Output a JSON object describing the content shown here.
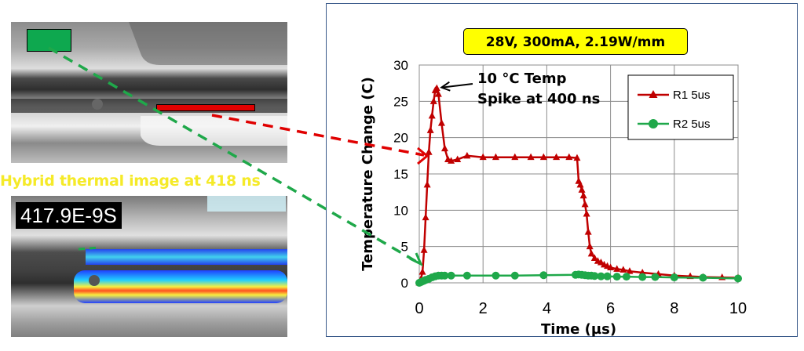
{
  "left_panel": {
    "caption": "Hybrid thermal image at 418 ns",
    "timestamp": "417.9E-9S"
  },
  "chart_banner": "28V, 300mA, 2.19W/mm",
  "chart_data": {
    "type": "line",
    "title": "28V, 300mA, 2.19W/mm",
    "xlabel": "Time (µs)",
    "ylabel": "Temperature Change (C)",
    "xlim": [
      0,
      10
    ],
    "ylim": [
      0,
      30
    ],
    "xticks": [
      0,
      2,
      4,
      6,
      8,
      10
    ],
    "yticks": [
      0,
      5,
      10,
      15,
      20,
      25,
      30
    ],
    "grid": "horizontal and vertical",
    "legend_position": "top-right",
    "series": [
      {
        "name": "R1 5us",
        "color": "#c00000",
        "marker": "triangle",
        "x": [
          0,
          0.05,
          0.1,
          0.15,
          0.2,
          0.25,
          0.3,
          0.35,
          0.4,
          0.45,
          0.5,
          0.55,
          0.6,
          0.7,
          0.8,
          0.9,
          1.0,
          1.2,
          1.5,
          2.0,
          2.4,
          3.0,
          3.5,
          3.9,
          4.3,
          4.7,
          4.95,
          5.0,
          5.05,
          5.1,
          5.15,
          5.2,
          5.25,
          5.3,
          5.35,
          5.4,
          5.5,
          5.6,
          5.7,
          5.8,
          5.9,
          6.0,
          6.2,
          6.4,
          6.6,
          7.0,
          7.5,
          8.0,
          8.5,
          8.9,
          9.5,
          10.0
        ],
        "y": [
          0,
          0.5,
          1.5,
          4.5,
          9,
          13.5,
          18,
          21,
          23,
          25,
          26.5,
          26.8,
          26,
          22,
          18.5,
          17,
          16.8,
          17,
          17.5,
          17.3,
          17.3,
          17.3,
          17.3,
          17.3,
          17.3,
          17.3,
          17.2,
          14,
          13.5,
          12.8,
          12,
          10.8,
          9.5,
          7,
          5,
          4,
          3.4,
          3.0,
          2.8,
          2.5,
          2.3,
          2.1,
          1.9,
          1.8,
          1.6,
          1.4,
          1.2,
          1.0,
          0.9,
          0.8,
          0.75,
          0.7
        ]
      },
      {
        "name": "R2 5us",
        "color": "#1fa84a",
        "marker": "circle",
        "x": [
          0,
          0.05,
          0.1,
          0.15,
          0.2,
          0.3,
          0.4,
          0.5,
          0.6,
          0.7,
          0.8,
          1.0,
          1.5,
          2.4,
          3.0,
          3.9,
          4.9,
          5.0,
          5.1,
          5.2,
          5.3,
          5.4,
          5.5,
          5.7,
          5.9,
          6.2,
          6.5,
          7.0,
          7.4,
          8.0,
          8.9,
          10.0
        ],
        "y": [
          0,
          0.1,
          0.2,
          0.3,
          0.4,
          0.55,
          0.75,
          0.9,
          1.0,
          1.0,
          1.0,
          1.0,
          1.0,
          1.0,
          1.0,
          1.05,
          1.1,
          1.15,
          1.1,
          1.05,
          1.0,
          1.0,
          0.95,
          0.9,
          0.9,
          0.85,
          0.85,
          0.8,
          0.8,
          0.75,
          0.7,
          0.6
        ]
      }
    ],
    "annotations": [
      {
        "text_lines": [
          "10 °C Temp",
          "Spike at 400 ns"
        ],
        "target_x": 0.55,
        "target_y": 26.8
      }
    ]
  }
}
